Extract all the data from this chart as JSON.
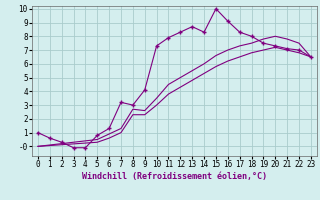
{
  "background_color": "#d4eeee",
  "grid_color": "#aacccc",
  "line_color": "#800080",
  "xlabel": "Windchill (Refroidissement éolien,°C)",
  "xlim": [
    -0.5,
    23.5
  ],
  "ylim": [
    -0.7,
    10.2
  ],
  "yticks": [
    0,
    1,
    2,
    3,
    4,
    5,
    6,
    7,
    8,
    9,
    10
  ],
  "xticks": [
    0,
    1,
    2,
    3,
    4,
    5,
    6,
    7,
    8,
    9,
    10,
    11,
    12,
    13,
    14,
    15,
    16,
    17,
    18,
    19,
    20,
    21,
    22,
    23
  ],
  "line1_x": [
    0,
    1,
    2,
    3,
    4,
    5,
    6,
    7,
    8,
    9,
    10,
    11,
    12,
    13,
    14,
    15,
    16,
    17,
    18,
    19,
    20,
    21,
    22,
    23
  ],
  "line1_y": [
    1.0,
    0.6,
    0.3,
    -0.1,
    -0.1,
    0.8,
    1.3,
    3.2,
    3.0,
    4.1,
    7.3,
    7.9,
    8.3,
    8.7,
    8.3,
    10.0,
    9.1,
    8.3,
    8.0,
    7.5,
    7.3,
    7.1,
    7.0,
    6.5
  ],
  "line2_x": [
    0,
    5,
    6,
    7,
    8,
    9,
    10,
    11,
    12,
    13,
    14,
    15,
    16,
    17,
    18,
    19,
    20,
    21,
    22,
    23
  ],
  "line2_y": [
    0.0,
    0.5,
    0.9,
    1.3,
    2.7,
    2.6,
    3.5,
    4.5,
    5.0,
    5.5,
    6.0,
    6.6,
    7.0,
    7.3,
    7.5,
    7.8,
    8.0,
    7.8,
    7.5,
    6.5
  ],
  "line3_x": [
    0,
    5,
    6,
    7,
    8,
    9,
    10,
    11,
    12,
    13,
    14,
    15,
    16,
    17,
    18,
    19,
    20,
    21,
    22,
    23
  ],
  "line3_y": [
    0.0,
    0.3,
    0.6,
    1.0,
    2.3,
    2.3,
    3.0,
    3.8,
    4.3,
    4.8,
    5.3,
    5.8,
    6.2,
    6.5,
    6.8,
    7.0,
    7.2,
    7.0,
    6.8,
    6.5
  ],
  "tick_fontsize": 5.5,
  "xlabel_fontsize": 6.0
}
